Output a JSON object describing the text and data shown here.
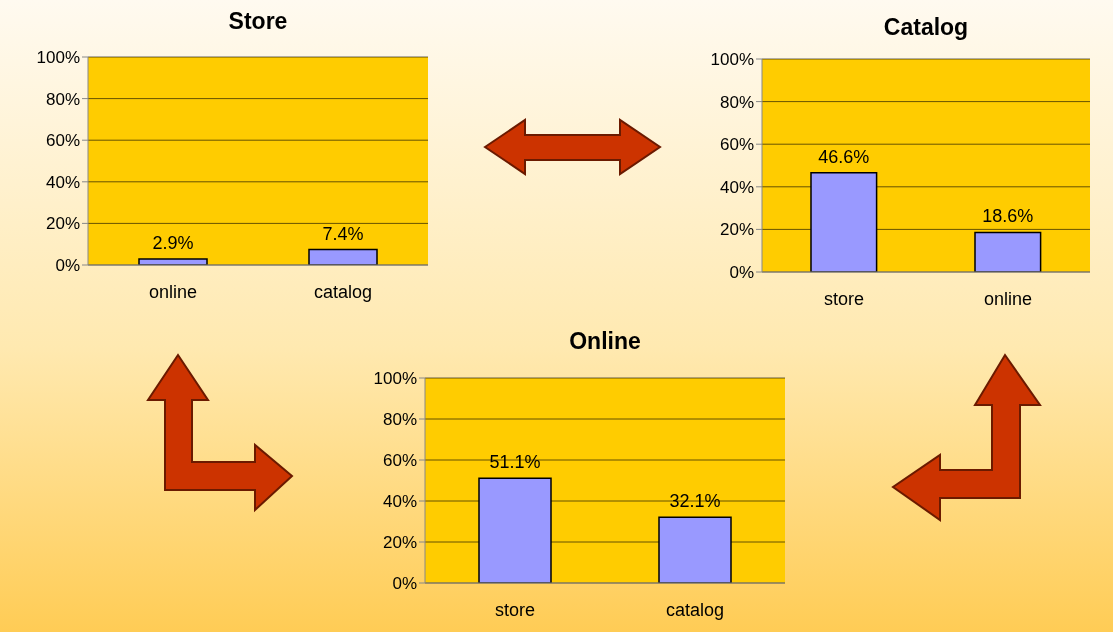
{
  "chart_data": [
    {
      "type": "bar",
      "title": "Store",
      "categories": [
        "online",
        "catalog"
      ],
      "values": [
        2.9,
        7.4
      ],
      "value_labels": [
        "2.9%",
        "7.4%"
      ],
      "color": "#9999ff",
      "ylim": [
        0,
        100
      ],
      "yticks": [
        {
          "value": 0,
          "label": "0%"
        },
        {
          "value": 20,
          "label": "20%"
        },
        {
          "value": 40,
          "label": "40%"
        },
        {
          "value": 60,
          "label": "60%"
        },
        {
          "value": 80,
          "label": "80%"
        },
        {
          "value": 100,
          "label": "100%"
        }
      ],
      "grid": "y"
    },
    {
      "type": "bar",
      "title": "Catalog",
      "categories": [
        "store",
        "online"
      ],
      "values": [
        46.6,
        18.6
      ],
      "value_labels": [
        "46.6%",
        "18.6%"
      ],
      "color": "#9999ff",
      "ylim": [
        0,
        100
      ],
      "yticks": [
        {
          "value": 0,
          "label": "0%"
        },
        {
          "value": 20,
          "label": "20%"
        },
        {
          "value": 40,
          "label": "40%"
        },
        {
          "value": 60,
          "label": "60%"
        },
        {
          "value": 80,
          "label": "80%"
        },
        {
          "value": 100,
          "label": "100%"
        }
      ],
      "grid": "y"
    },
    {
      "type": "bar",
      "title": "Online",
      "categories": [
        "store",
        "catalog"
      ],
      "values": [
        51.1,
        32.1
      ],
      "value_labels": [
        "51.1%",
        "32.1%"
      ],
      "color": "#9999ff",
      "ylim": [
        0,
        100
      ],
      "yticks": [
        {
          "value": 0,
          "label": "0%"
        },
        {
          "value": 20,
          "label": "20%"
        },
        {
          "value": 40,
          "label": "40%"
        },
        {
          "value": 60,
          "label": "60%"
        },
        {
          "value": 80,
          "label": "80%"
        },
        {
          "value": 100,
          "label": "100%"
        }
      ],
      "grid": "y"
    }
  ]
}
